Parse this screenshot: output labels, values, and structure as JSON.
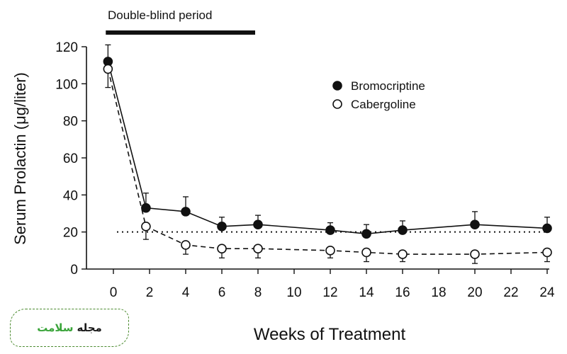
{
  "chart_data": {
    "type": "line",
    "title": "Double-blind period",
    "xlabel": "Weeks of Treatment",
    "ylabel": "Serum Prolactin (μg/liter)",
    "xlim": [
      -0.5,
      24
    ],
    "ylim": [
      0,
      120
    ],
    "xticks": [
      0,
      2,
      4,
      6,
      8,
      10,
      12,
      14,
      16,
      18,
      20,
      22,
      24
    ],
    "yticks": [
      0,
      20,
      40,
      60,
      80,
      100,
      120
    ],
    "reference_line": 20,
    "double_blind_weeks": [
      -0.5,
      8
    ],
    "series": [
      {
        "name": "Bromocriptine",
        "marker": "filled",
        "line": "solid",
        "x": [
          -0.3,
          1.8,
          4,
          6,
          8,
          12,
          14,
          16,
          20,
          24
        ],
        "y": [
          112,
          33,
          31,
          23,
          24,
          21,
          19,
          21,
          24,
          22
        ],
        "err": [
          9,
          8,
          8,
          5,
          5,
          4,
          5,
          5,
          7,
          6
        ]
      },
      {
        "name": "Cabergoline",
        "marker": "open",
        "line": "dashed",
        "x": [
          -0.3,
          1.8,
          4,
          6,
          8,
          12,
          14,
          16,
          20,
          24
        ],
        "y": [
          108,
          23,
          13,
          11,
          11,
          10,
          9,
          8,
          8,
          9
        ],
        "err": [
          10,
          7,
          5,
          5,
          5,
          4,
          5,
          4,
          5,
          5
        ]
      }
    ],
    "legend_position": "top-right"
  },
  "watermark": {
    "word1": "مجله",
    "word2": "سلامت"
  }
}
